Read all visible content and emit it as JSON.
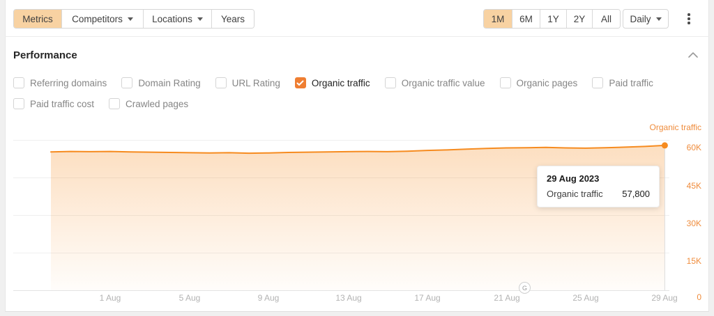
{
  "colors": {
    "accent_orange": "#f68b1f",
    "active_tab_bg": "#f8d2a2",
    "checkbox_checked": "#ef7e32",
    "axis_label_orange": "#ef8c3c",
    "page_bg": "#f0f0f0"
  },
  "toolbar": {
    "left_tabs": [
      {
        "label": "Metrics",
        "active": true,
        "has_caret": false
      },
      {
        "label": "Competitors",
        "active": false,
        "has_caret": true
      },
      {
        "label": "Locations",
        "active": false,
        "has_caret": true
      },
      {
        "label": "Years",
        "active": false,
        "has_caret": false
      }
    ],
    "range_tabs": [
      {
        "label": "1M",
        "active": true
      },
      {
        "label": "6M",
        "active": false
      },
      {
        "label": "1Y",
        "active": false
      },
      {
        "label": "2Y",
        "active": false
      },
      {
        "label": "All",
        "active": false
      }
    ],
    "granularity": {
      "label": "Daily",
      "has_caret": true
    }
  },
  "section": {
    "title": "Performance"
  },
  "metrics": {
    "row1": [
      {
        "label": "Referring domains",
        "checked": false
      },
      {
        "label": "Domain Rating",
        "checked": false
      },
      {
        "label": "URL Rating",
        "checked": false
      },
      {
        "label": "Organic traffic",
        "checked": true
      },
      {
        "label": "Organic traffic value",
        "checked": false
      },
      {
        "label": "Organic pages",
        "checked": false
      },
      {
        "label": "Paid traffic",
        "checked": false
      }
    ],
    "row2": [
      {
        "label": "Paid traffic cost",
        "checked": false
      },
      {
        "label": "Crawled pages",
        "checked": false
      }
    ]
  },
  "chart_data": {
    "type": "area",
    "legend": "Organic traffic",
    "legend_position": "top-right",
    "grid": "horizontal",
    "ylim": [
      0,
      60000
    ],
    "yticks": [
      "60K",
      "45K",
      "30K",
      "15K",
      "0"
    ],
    "ytick_values": [
      60000,
      45000,
      30000,
      15000,
      0
    ],
    "xticks": [
      "1 Aug",
      "5 Aug",
      "9 Aug",
      "13 Aug",
      "17 Aug",
      "21 Aug",
      "25 Aug",
      "29 Aug"
    ],
    "x": [
      "29 Jul",
      "30 Jul",
      "31 Jul",
      "1 Aug",
      "2 Aug",
      "3 Aug",
      "4 Aug",
      "5 Aug",
      "6 Aug",
      "7 Aug",
      "8 Aug",
      "9 Aug",
      "10 Aug",
      "11 Aug",
      "12 Aug",
      "13 Aug",
      "14 Aug",
      "15 Aug",
      "16 Aug",
      "17 Aug",
      "18 Aug",
      "19 Aug",
      "20 Aug",
      "21 Aug",
      "22 Aug",
      "23 Aug",
      "24 Aug",
      "25 Aug",
      "26 Aug",
      "27 Aug",
      "28 Aug",
      "29 Aug"
    ],
    "series": [
      {
        "name": "Organic traffic",
        "color": "#f68b1f",
        "values": [
          55200,
          55400,
          55300,
          55400,
          55200,
          55100,
          55000,
          54900,
          54800,
          54900,
          54700,
          54800,
          55000,
          55100,
          55200,
          55300,
          55400,
          55300,
          55500,
          55800,
          56000,
          56300,
          56600,
          56800,
          56900,
          57000,
          56800,
          56700,
          56900,
          57100,
          57400,
          57800
        ]
      }
    ],
    "highlighted_point": {
      "x": "29 Aug",
      "value": 57800
    }
  },
  "tooltip": {
    "date": "29 Aug 2023",
    "metric": "Organic traffic",
    "value": "57,800"
  },
  "annotations": {
    "google_marker": {
      "label": "G",
      "x": "22 Aug"
    }
  }
}
